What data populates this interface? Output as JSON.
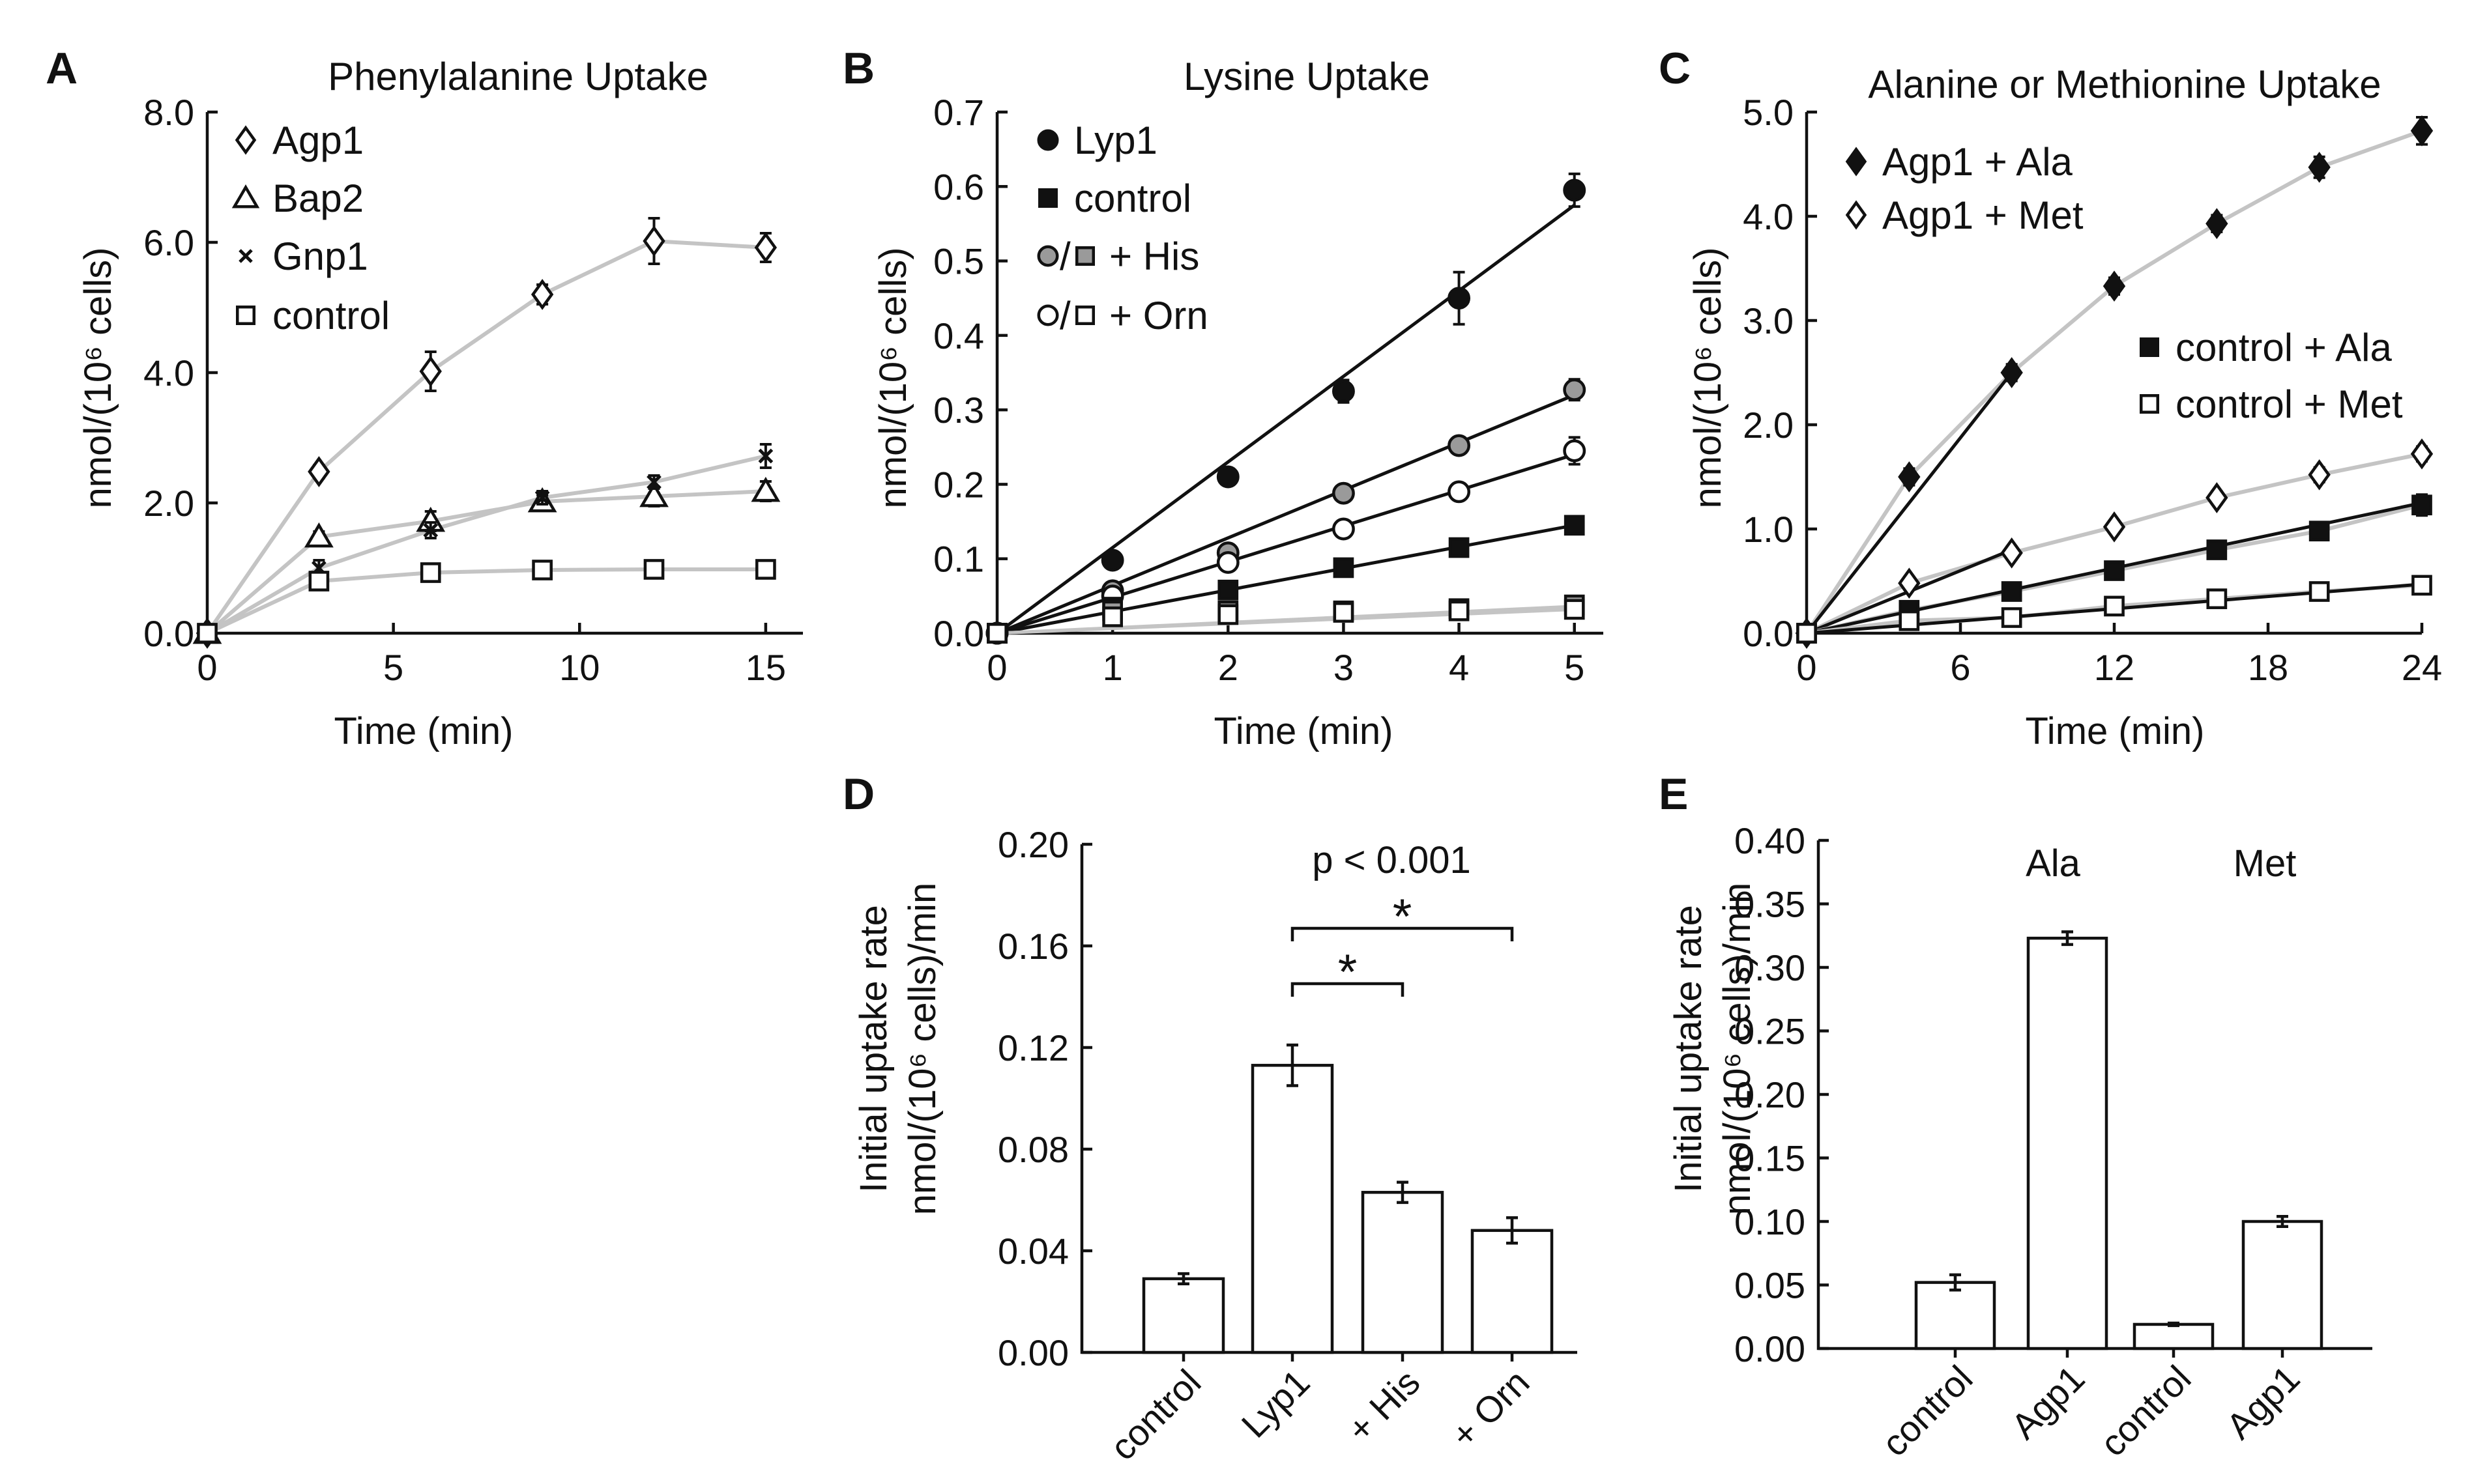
{
  "chart_data": [
    {
      "panel": "A",
      "type": "line",
      "title": "Phenylalanine Uptake",
      "xlabel": "Time (min)",
      "ylabel": "nmol/(10⁶ cells)",
      "xlim": [
        0,
        16
      ],
      "ylim": [
        0,
        8
      ],
      "xticks": [
        "0",
        "5",
        "10",
        "15"
      ],
      "yticks": [
        "0.0",
        "2.0",
        "4.0",
        "6.0",
        "8.0"
      ],
      "legend_position": "top-left",
      "series": [
        {
          "name": "Agp1",
          "marker": "diamond-open",
          "x": [
            0,
            3,
            6,
            9,
            12,
            15
          ],
          "y": [
            0,
            2.48,
            4.02,
            5.2,
            6.02,
            5.92
          ],
          "err": [
            0,
            0.1,
            0.3,
            0.15,
            0.35,
            0.22
          ]
        },
        {
          "name": "Bap2",
          "marker": "triangle-open",
          "x": [
            0,
            3,
            6,
            9,
            12,
            15
          ],
          "y": [
            0,
            1.48,
            1.72,
            2.02,
            2.1,
            2.18
          ],
          "err": [
            0,
            0.08,
            0.15,
            0.1,
            0.15,
            0.15
          ]
        },
        {
          "name": "Gnp1",
          "marker": "x",
          "x": [
            0,
            3,
            6,
            9,
            12,
            15
          ],
          "y": [
            0,
            1.0,
            1.58,
            2.08,
            2.32,
            2.72
          ],
          "err": [
            0,
            0.12,
            0.12,
            0.1,
            0.1,
            0.18
          ]
        },
        {
          "name": "control",
          "marker": "square-open",
          "x": [
            0,
            3,
            6,
            9,
            12,
            15
          ],
          "y": [
            0,
            0.8,
            0.93,
            0.97,
            0.98,
            0.98
          ],
          "err": [
            0,
            0.08,
            0.05,
            0.05,
            0.04,
            0.04
          ]
        }
      ]
    },
    {
      "panel": "B",
      "type": "line",
      "title": "Lysine Uptake",
      "xlabel": "Time (min)",
      "ylabel": "nmol/(10⁶ cells)",
      "xlim": [
        0,
        5.25
      ],
      "ylim": [
        0,
        0.7
      ],
      "xticks": [
        "0",
        "1",
        "2",
        "3",
        "4",
        "5"
      ],
      "yticks": [
        "0.0",
        "0.1",
        "0.2",
        "0.3",
        "0.4",
        "0.5",
        "0.6",
        "0.7"
      ],
      "legend_position": "top-left",
      "legend": [
        {
          "label": "Lyp1",
          "markers": [
            "circle-black"
          ]
        },
        {
          "label": "control",
          "markers": [
            "square-black"
          ]
        },
        {
          "label": "+ His",
          "markers": [
            "circle-gray",
            "square-gray"
          ],
          "sep": "/"
        },
        {
          "label": "+ Orn",
          "markers": [
            "circle-open",
            "square-open"
          ],
          "sep": "/"
        }
      ],
      "series": [
        {
          "name": "Lyp1",
          "marker": "circle-black",
          "x": [
            0,
            1,
            2,
            3,
            4,
            5
          ],
          "y": [
            0,
            0.098,
            0.21,
            0.325,
            0.45,
            0.595
          ],
          "err": [
            0,
            0.006,
            0.008,
            0.015,
            0.035,
            0.022
          ],
          "fit": [
            0,
            0.575
          ],
          "fit_color": "#111111"
        },
        {
          "name": "Lyp1 + His",
          "marker": "circle-gray",
          "x": [
            0,
            1,
            2,
            3,
            4,
            5
          ],
          "y": [
            0,
            0.057,
            0.108,
            0.188,
            0.252,
            0.327
          ],
          "err": [
            0,
            0.005,
            0.005,
            0.006,
            0.008,
            0.014
          ],
          "fit": [
            0,
            0.32
          ],
          "fit_color": "#111111"
        },
        {
          "name": "Lyp1 + Orn",
          "marker": "circle-open",
          "x": [
            0,
            1,
            2,
            3,
            4,
            5
          ],
          "y": [
            0,
            0.05,
            0.095,
            0.14,
            0.19,
            0.245
          ],
          "err": [
            0,
            0.005,
            0.005,
            0.006,
            0.008,
            0.018
          ],
          "fit": [
            0,
            0.24
          ],
          "fit_color": "#111111"
        },
        {
          "name": "control",
          "marker": "square-black",
          "x": [
            0,
            1,
            2,
            3,
            4,
            5
          ],
          "y": [
            0,
            0.035,
            0.058,
            0.088,
            0.115,
            0.145
          ],
          "err": [
            0,
            0.004,
            0.004,
            0.004,
            0.004,
            0.005
          ],
          "fit": [
            0,
            0.145
          ],
          "fit_color": "#111111"
        },
        {
          "name": "control + His",
          "marker": "square-gray",
          "x": [
            0,
            1,
            2,
            3,
            4,
            5
          ],
          "y": [
            0,
            0.03,
            0.03,
            0.03,
            0.033,
            0.038
          ],
          "err": [
            0,
            0.004,
            0.004,
            0.004,
            0.004,
            0.005
          ],
          "fit": [
            0,
            0.036
          ],
          "fit_color": "#c4c4c4"
        },
        {
          "name": "control + Orn",
          "marker": "square-open",
          "x": [
            0,
            1,
            2,
            3,
            4,
            5
          ],
          "y": [
            0,
            0.022,
            0.025,
            0.028,
            0.03,
            0.032
          ],
          "err": [
            0,
            0.004,
            0.004,
            0.004,
            0.004,
            0.005
          ],
          "fit": [
            0,
            0.032
          ],
          "fit_color": "#c4c4c4"
        }
      ]
    },
    {
      "panel": "C",
      "type": "line",
      "title": "Alanine or Methionine Uptake",
      "xlabel": "Time (min)",
      "ylabel": "nmol/(10⁶ cells)",
      "xlim": [
        0,
        24
      ],
      "ylim": [
        0,
        5
      ],
      "xticks": [
        "0",
        "6",
        "12",
        "18",
        "24"
      ],
      "yticks": [
        "0.0",
        "1.0",
        "2.0",
        "3.0",
        "4.0",
        "5.0"
      ],
      "legend_position": "top-left and middle-right",
      "series": [
        {
          "name": "Agp1 + Ala",
          "marker": "diamond-black",
          "x": [
            0,
            4,
            8,
            12,
            16,
            20,
            24
          ],
          "y": [
            0,
            1.5,
            2.5,
            3.33,
            3.93,
            4.47,
            4.82
          ],
          "err": [
            0,
            0.08,
            0.08,
            0.08,
            0.08,
            0.1,
            0.13
          ],
          "fit": [
            0,
            2.5
          ],
          "fit_xmax": 8
        },
        {
          "name": "Agp1 + Met",
          "marker": "diamond-open",
          "x": [
            0,
            4,
            8,
            12,
            16,
            20,
            24
          ],
          "y": [
            0,
            0.48,
            0.77,
            1.02,
            1.3,
            1.52,
            1.72
          ],
          "err": [
            0,
            0.06,
            0.06,
            0.06,
            0.06,
            0.07,
            0.07
          ],
          "fit": [
            0,
            0.8
          ],
          "fit_xmax": 8
        },
        {
          "name": "control + Ala",
          "marker": "square-black",
          "x": [
            0,
            4,
            8,
            12,
            16,
            20,
            24
          ],
          "y": [
            0,
            0.22,
            0.4,
            0.6,
            0.8,
            0.98,
            1.23
          ],
          "err": [
            0,
            0.04,
            0.04,
            0.04,
            0.04,
            0.05,
            0.1
          ],
          "fit": [
            0,
            1.25
          ],
          "fit_xmax": 24
        },
        {
          "name": "control + Met",
          "marker": "square-open",
          "x": [
            0,
            4,
            8,
            12,
            16,
            20,
            24
          ],
          "y": [
            0,
            0.12,
            0.15,
            0.26,
            0.33,
            0.4,
            0.46
          ],
          "err": [
            0,
            0.03,
            0.03,
            0.03,
            0.03,
            0.03,
            0.04
          ],
          "fit": [
            0,
            0.47
          ],
          "fit_xmax": 24
        }
      ]
    },
    {
      "panel": "D",
      "type": "bar",
      "title": "",
      "xlabel": "",
      "ylabel_line1": "Initial uptake rate",
      "ylabel_line2": "nmol/(10⁶ cells)/min",
      "categories": [
        "control",
        "Lyp1",
        "+ His",
        "+ Orn"
      ],
      "values": [
        0.029,
        0.113,
        0.063,
        0.048
      ],
      "err": [
        0.002,
        0.008,
        0.004,
        0.005
      ],
      "ylim": [
        0,
        0.2
      ],
      "yticks": [
        "0.00",
        "0.04",
        "0.08",
        "0.12",
        "0.16",
        "0.20"
      ],
      "annotation": "p < 0.001",
      "significance": [
        {
          "from": "Lyp1",
          "to": "+ His",
          "mark": "*"
        },
        {
          "from": "Lyp1",
          "to": "+ Orn",
          "mark": "*"
        }
      ]
    },
    {
      "panel": "E",
      "type": "bar",
      "title": "",
      "xlabel": "",
      "ylabel_line1": "Initial uptake rate",
      "ylabel_line2": "nmol/(10⁶ cells)/min",
      "categories": [
        "control",
        "Agp1",
        "control",
        "Agp1"
      ],
      "values": [
        0.052,
        0.323,
        0.019,
        0.1
      ],
      "err": [
        0.006,
        0.005,
        0.001,
        0.004
      ],
      "ylim": [
        0,
        0.4
      ],
      "yticks": [
        "0.00",
        "0.05",
        "0.10",
        "0.15",
        "0.20",
        "0.25",
        "0.30",
        "0.35",
        "0.40"
      ],
      "group_labels": [
        "Ala",
        "Met"
      ]
    }
  ]
}
